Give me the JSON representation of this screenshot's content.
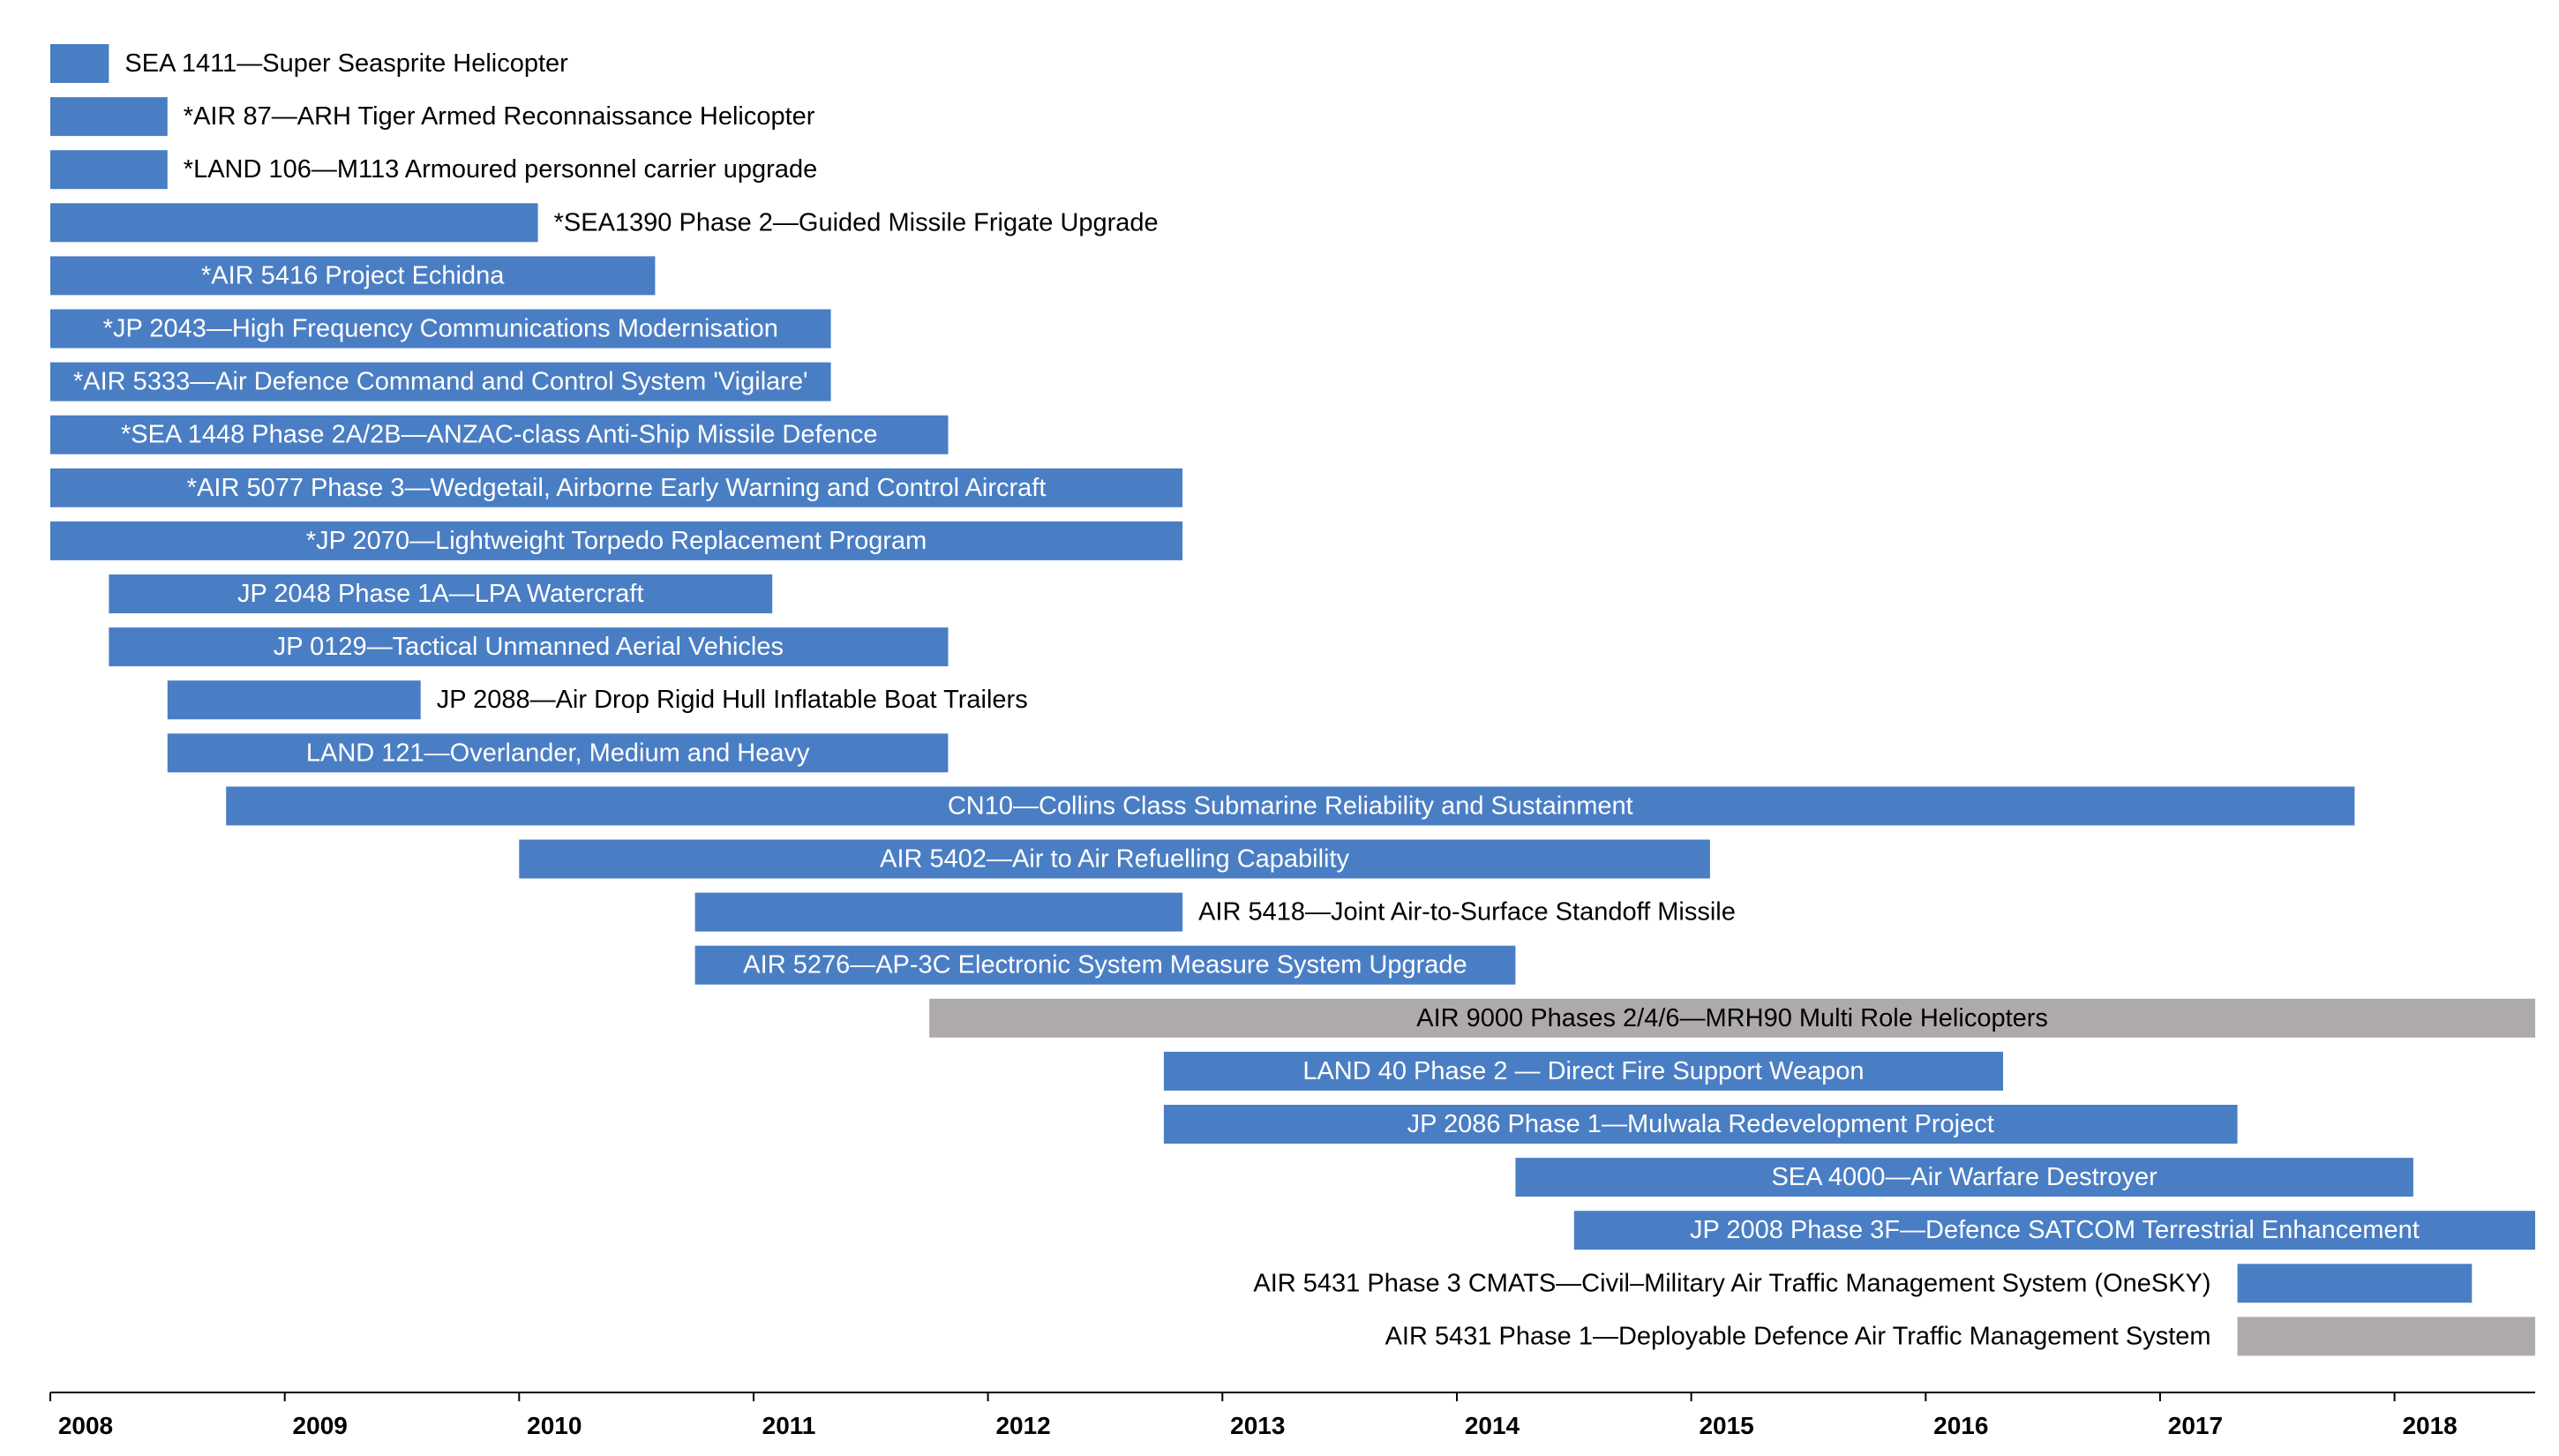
{
  "chart_data": {
    "type": "gantt",
    "title": "",
    "xlabel": "",
    "ylabel": "",
    "xlim": [
      2008,
      2018.6
    ],
    "x_ticks": [
      "2008",
      "2009",
      "2010",
      "2011",
      "2012",
      "2013",
      "2014",
      "2015",
      "2016",
      "2017",
      "2018"
    ],
    "colors": {
      "blue": "#4a7ec4",
      "grey": "#aeaaaa"
    },
    "series": [
      {
        "name": "SEA 1411—Super Seasprite Helicopter",
        "start": 2008.0,
        "end": 2008.25,
        "color": "blue",
        "label_pos": "right"
      },
      {
        "name": "*AIR 87—ARH Tiger Armed Reconnaissance Helicopter",
        "start": 2008.0,
        "end": 2008.5,
        "color": "blue",
        "label_pos": "right"
      },
      {
        "name": "*LAND 106—M113 Armoured personnel carrier upgrade",
        "start": 2008.0,
        "end": 2008.5,
        "color": "blue",
        "label_pos": "right"
      },
      {
        "name": "*SEA1390 Phase 2—Guided Missile Frigate Upgrade",
        "start": 2008.0,
        "end": 2010.08,
        "color": "blue",
        "label_pos": "right"
      },
      {
        "name": "*AIR 5416 Project Echidna",
        "start": 2008.0,
        "end": 2010.58,
        "color": "blue",
        "label_pos": "inside"
      },
      {
        "name": "*JP 2043—High Frequency Communications Modernisation",
        "start": 2008.0,
        "end": 2011.33,
        "color": "blue",
        "label_pos": "inside"
      },
      {
        "name": "*AIR 5333—Air Defence Command and Control System 'Vigilare'",
        "start": 2008.0,
        "end": 2011.33,
        "color": "blue",
        "label_pos": "inside"
      },
      {
        "name": "*SEA 1448 Phase 2A/2B—ANZAC-class Anti-Ship Missile Defence",
        "start": 2008.0,
        "end": 2011.83,
        "color": "blue",
        "label_pos": "inside"
      },
      {
        "name": "*AIR 5077 Phase 3—Wedgetail, Airborne Early Warning and Control Aircraft",
        "start": 2008.0,
        "end": 2012.83,
        "color": "blue",
        "label_pos": "inside"
      },
      {
        "name": "*JP 2070—Lightweight Torpedo Replacement Program",
        "start": 2008.0,
        "end": 2012.83,
        "color": "blue",
        "label_pos": "inside"
      },
      {
        "name": "JP 2048 Phase 1A—LPA Watercraft",
        "start": 2008.25,
        "end": 2011.08,
        "color": "blue",
        "label_pos": "inside"
      },
      {
        "name": "JP 0129—Tactical Unmanned Aerial Vehicles",
        "start": 2008.25,
        "end": 2011.83,
        "color": "blue",
        "label_pos": "inside"
      },
      {
        "name": "JP 2088—Air Drop Rigid Hull Inflatable Boat Trailers",
        "start": 2008.5,
        "end": 2009.58,
        "color": "blue",
        "label_pos": "right"
      },
      {
        "name": "LAND 121—Overlander, Medium and Heavy",
        "start": 2008.5,
        "end": 2011.83,
        "color": "blue",
        "label_pos": "inside"
      },
      {
        "name": "CN10—Collins Class Submarine Reliability and Sustainment",
        "start": 2008.75,
        "end": 2017.83,
        "color": "blue",
        "label_pos": "inside"
      },
      {
        "name": "AIR 5402—Air to Air Refuelling Capability",
        "start": 2010.0,
        "end": 2015.08,
        "color": "blue",
        "label_pos": "inside"
      },
      {
        "name": "AIR 5418—Joint Air-to-Surface Standoff Missile",
        "start": 2010.75,
        "end": 2012.83,
        "color": "blue",
        "label_pos": "right"
      },
      {
        "name": "AIR 5276—AP-3C Electronic System Measure System Upgrade",
        "start": 2010.75,
        "end": 2014.25,
        "color": "blue",
        "label_pos": "inside"
      },
      {
        "name": "AIR 9000 Phases 2/4/6—MRH90 Multi Role Helicopters",
        "start": 2011.75,
        "end": 2018.6,
        "color": "grey",
        "label_pos": "inside"
      },
      {
        "name": "LAND 40 Phase 2 — Direct Fire Support Weapon",
        "start": 2012.75,
        "end": 2016.33,
        "color": "blue",
        "label_pos": "inside"
      },
      {
        "name": "JP 2086 Phase 1—Mulwala Redevelopment Project",
        "start": 2012.75,
        "end": 2017.33,
        "color": "blue",
        "label_pos": "inside"
      },
      {
        "name": "SEA 4000—Air Warfare Destroyer",
        "start": 2014.25,
        "end": 2018.08,
        "color": "blue",
        "label_pos": "inside"
      },
      {
        "name": "JP 2008 Phase 3F—Defence SATCOM Terrestrial Enhancement",
        "start": 2014.5,
        "end": 2018.6,
        "color": "blue",
        "label_pos": "inside"
      },
      {
        "name": "AIR 5431 Phase 3 CMATS—Civil–Military Air Traffic Management System (OneSKY)",
        "start": 2017.33,
        "end": 2018.33,
        "color": "blue",
        "label_pos": "left"
      },
      {
        "name": "AIR 5431 Phase 1—Deployable Defence Air Traffic Management System",
        "start": 2017.33,
        "end": 2018.6,
        "color": "grey",
        "label_pos": "left"
      }
    ]
  }
}
